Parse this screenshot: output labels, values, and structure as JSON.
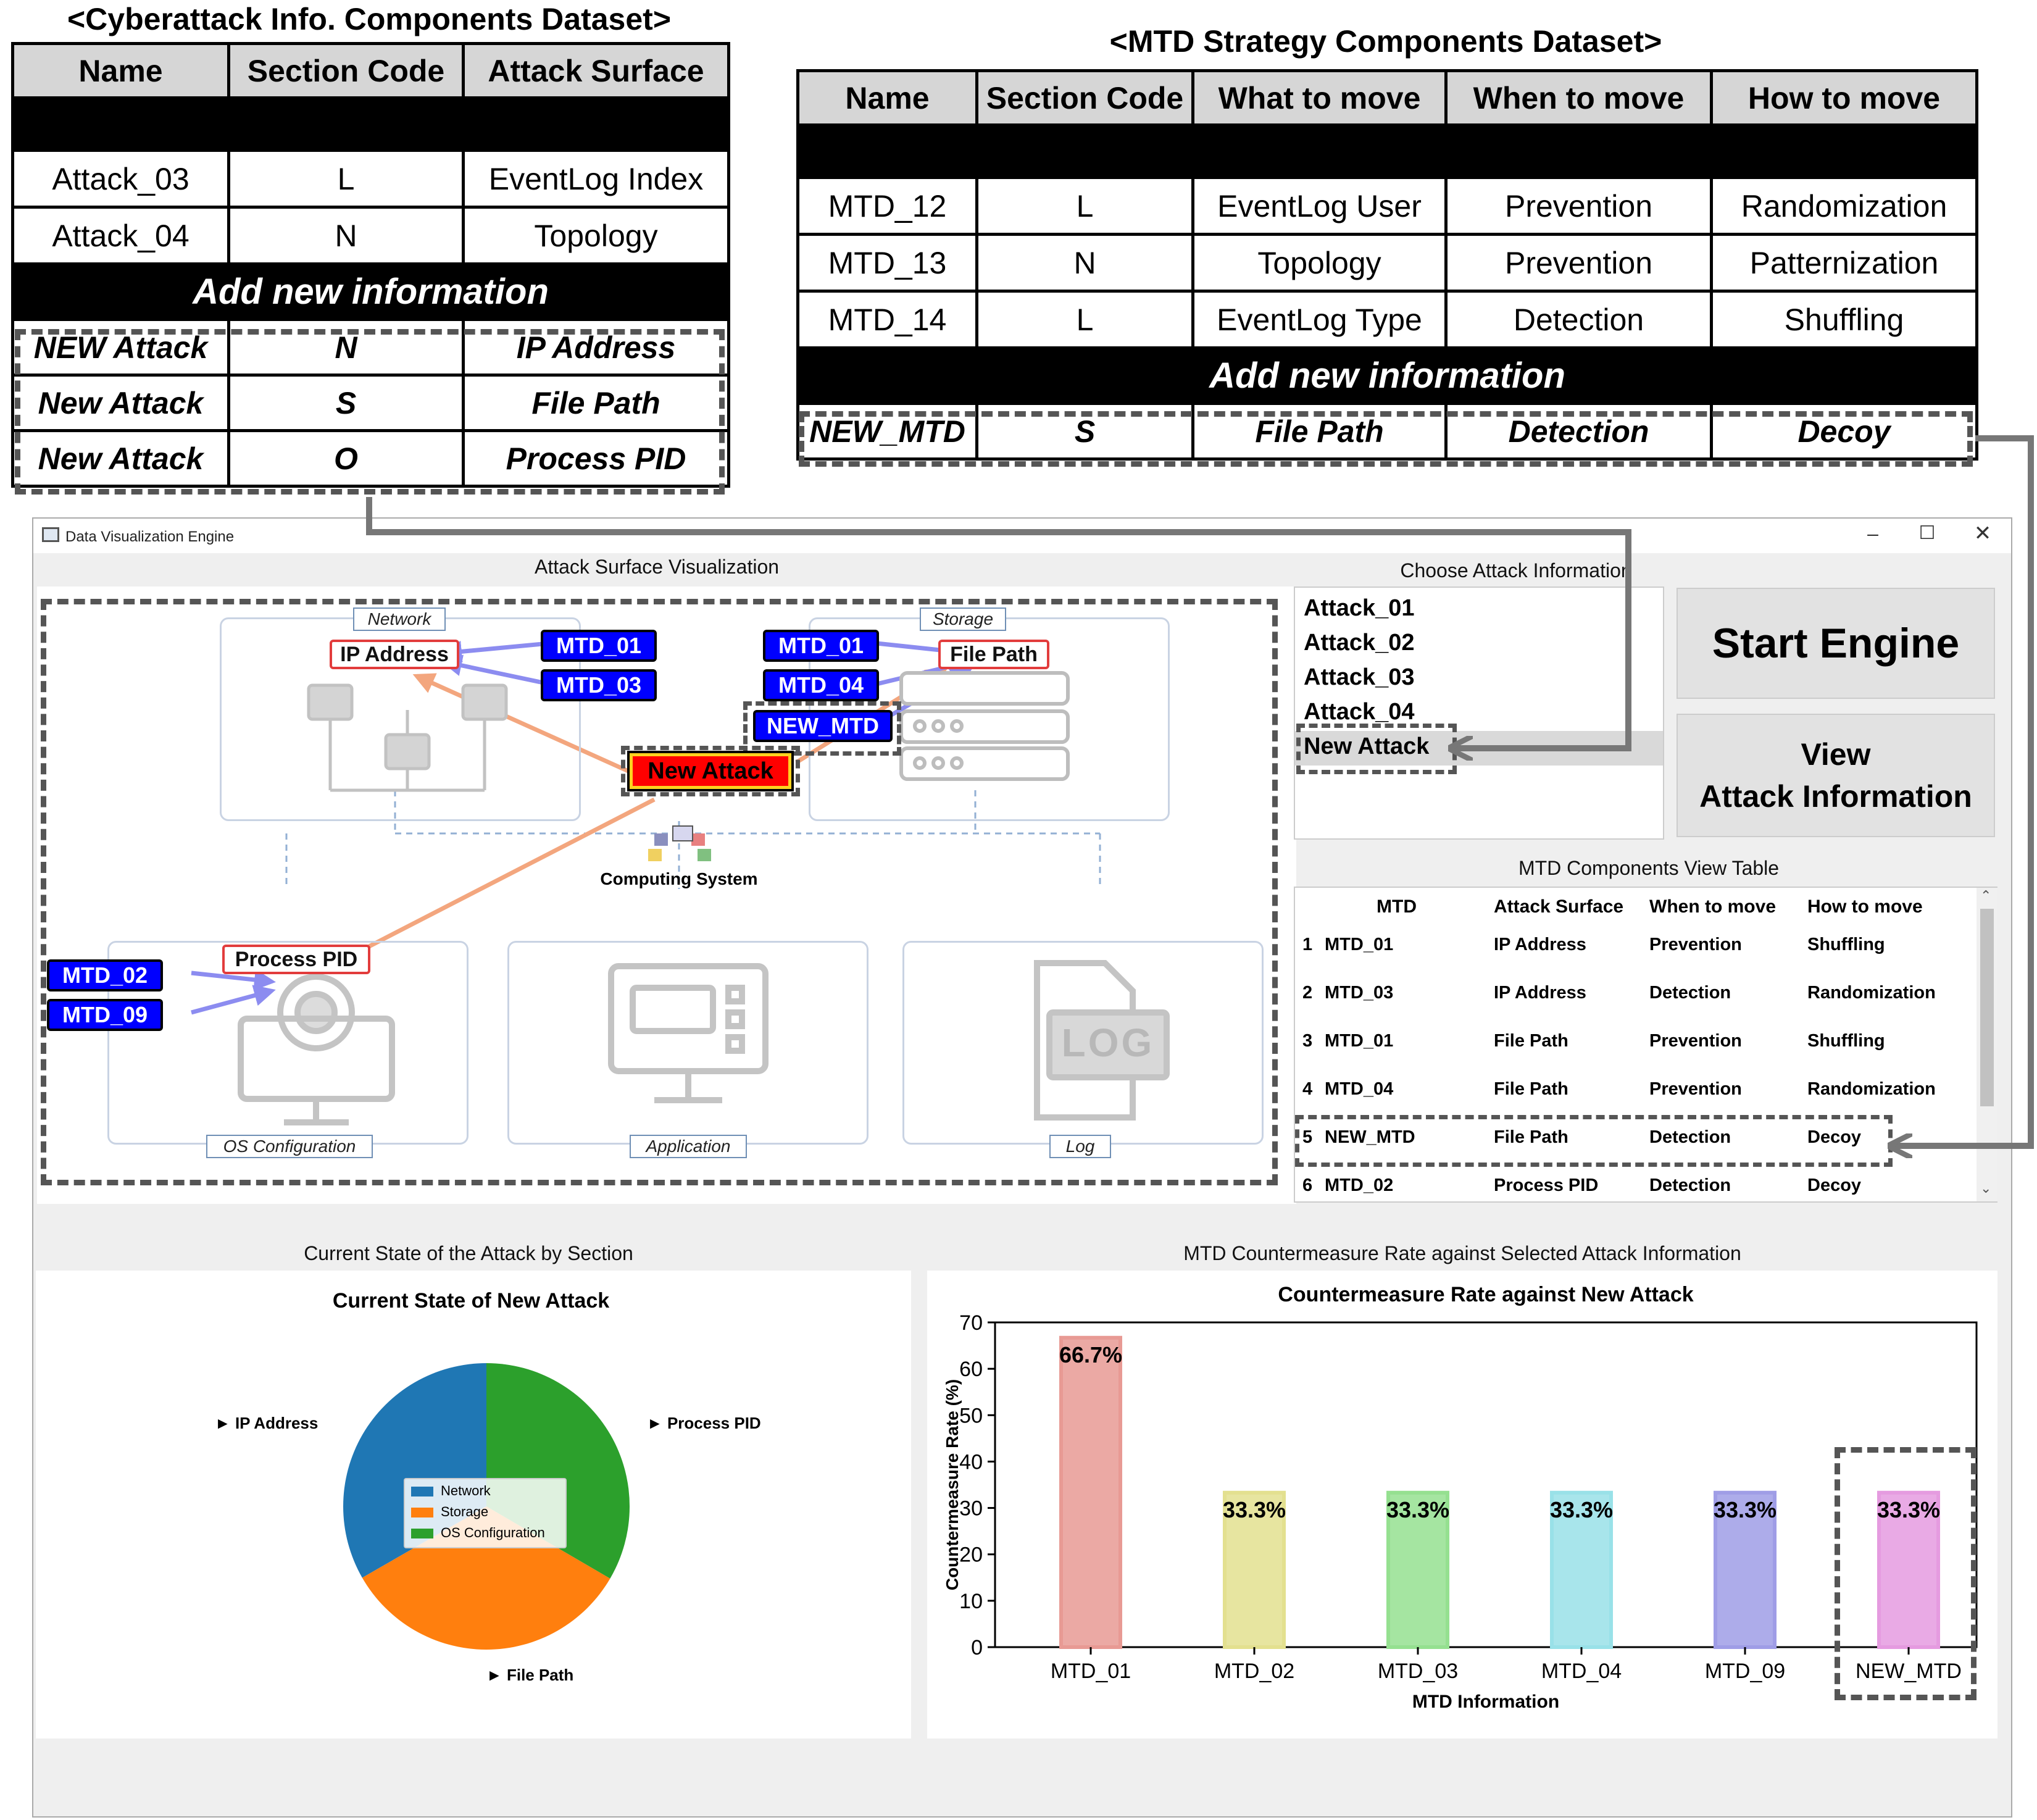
{
  "attack_dataset": {
    "title": "<Cyberattack Info. Components Dataset>",
    "headers": [
      "Name",
      "Section Code",
      "Attack Surface"
    ],
    "rows": [
      [
        "Attack_03",
        "L",
        "EventLog Index"
      ],
      [
        "Attack_04",
        "N",
        "Topology"
      ]
    ],
    "add_label": "Add new information",
    "new_rows": [
      [
        "NEW Attack",
        "N",
        "IP Address"
      ],
      [
        "New Attack",
        "S",
        "File Path"
      ],
      [
        "New Attack",
        "O",
        "Process PID"
      ]
    ]
  },
  "mtd_dataset": {
    "title": "<MTD Strategy Components Dataset>",
    "headers": [
      "Name",
      "Section Code",
      "What to move",
      "When to move",
      "How to move"
    ],
    "rows": [
      [
        "MTD_12",
        "L",
        "EventLog User",
        "Prevention",
        "Randomization"
      ],
      [
        "MTD_13",
        "N",
        "Topology",
        "Prevention",
        "Patternization"
      ],
      [
        "MTD_14",
        "L",
        "EventLog Type",
        "Detection",
        "Shuffling"
      ]
    ],
    "add_label": "Add new information",
    "new_row": [
      "NEW_MTD",
      "S",
      "File Path",
      "Detection",
      "Decoy"
    ]
  },
  "window": {
    "title": "Data Visualization Engine",
    "min_icon": "minimize-icon",
    "max_icon": "maximize-icon",
    "close_icon": "close-icon"
  },
  "viz": {
    "section_title": "Attack Surface Visualization",
    "sections": {
      "network": "Network",
      "storage": "Storage",
      "os": "OS Configuration",
      "application": "Application",
      "log": "Log"
    },
    "computing_label": "Computing System",
    "attack_label": "New Attack",
    "targets": {
      "ip": "IP Address",
      "file": "File Path",
      "pid": "Process PID"
    },
    "mtd_tags": {
      "net1": "MTD_01",
      "net2": "MTD_03",
      "st1": "MTD_01",
      "st2": "MTD_04",
      "st3": "NEW_MTD",
      "os1": "MTD_02",
      "os2": "MTD_09"
    },
    "log_icon_text": "LOG"
  },
  "choose": {
    "title": "Choose Attack Information",
    "items": [
      "Attack_01",
      "Attack_02",
      "Attack_03",
      "Attack_04",
      "New Attack"
    ],
    "selected": "New Attack"
  },
  "buttons": {
    "start": "Start Engine",
    "view1": "View",
    "view2": "Attack Information"
  },
  "mtd_view": {
    "title": "MTD Components View Table",
    "headers": [
      "MTD",
      "Attack Surface",
      "When to move",
      "How to move"
    ],
    "rows": [
      [
        "1",
        "MTD_01",
        "IP Address",
        "Prevention",
        "Shuffling"
      ],
      [
        "2",
        "MTD_03",
        "IP Address",
        "Detection",
        "Randomization"
      ],
      [
        "3",
        "MTD_01",
        "File Path",
        "Prevention",
        "Shuffling"
      ],
      [
        "4",
        "MTD_04",
        "File Path",
        "Prevention",
        "Randomization"
      ],
      [
        "5",
        "NEW_MTD",
        "File Path",
        "Detection",
        "Decoy"
      ],
      [
        "6",
        "MTD_02",
        "Process PID",
        "Detection",
        "Decoy"
      ]
    ]
  },
  "pie_section": {
    "title": "Current State of the Attack by Section",
    "chart_title": "Current State of New Attack",
    "labels": {
      "ip": "► IP Address",
      "pid": "► Process PID",
      "file": "► File Path"
    },
    "legend": [
      "Network",
      "Storage",
      "OS Configuration"
    ]
  },
  "bar_section": {
    "title": "MTD Countermeasure Rate against Selected Attack Information"
  },
  "chart_data": [
    {
      "type": "pie",
      "title": "Current State of New Attack",
      "labels": [
        "Network",
        "Storage",
        "OS Configuration"
      ],
      "values": [
        33.3,
        33.3,
        33.4
      ],
      "colors": [
        "#1f77b4",
        "#ff7f0e",
        "#2ca02c"
      ]
    },
    {
      "type": "bar",
      "title": "Countermeasure Rate against New Attack",
      "categories": [
        "MTD_01",
        "MTD_02",
        "MTD_03",
        "MTD_04",
        "MTD_09",
        "NEW_MTD"
      ],
      "values": [
        66.7,
        33.3,
        33.3,
        33.3,
        33.3,
        33.3
      ],
      "data_labels": [
        "66.7%",
        "33.3%",
        "33.3%",
        "33.3%",
        "33.3%",
        "33.3%"
      ],
      "colors": [
        "#e89a94",
        "#e3e08f",
        "#95e090",
        "#99e1e8",
        "#9f9de6",
        "#e59be0"
      ],
      "xlabel": "MTD Information",
      "ylabel": "Countermeasure Rate (%)",
      "ylim": [
        0,
        70
      ],
      "yticks": [
        "0",
        "10",
        "20",
        "30",
        "40",
        "50",
        "60",
        "70"
      ]
    }
  ]
}
